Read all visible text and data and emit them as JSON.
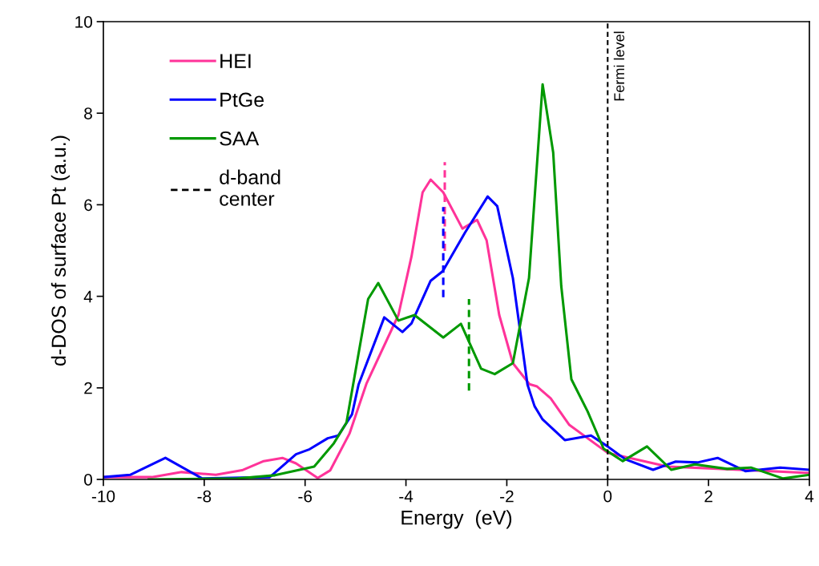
{
  "chart_data": {
    "type": "line",
    "xlabel": "Energy  (eV)",
    "ylabel": "d-DOS of surface Pt (a.u.)",
    "xlim": [
      -10,
      4
    ],
    "xticks": [
      -10,
      -8,
      -6,
      -4,
      -2,
      0,
      2,
      4
    ],
    "ylim": [
      0,
      10
    ],
    "yticks": [
      0,
      2,
      4,
      6,
      8,
      10
    ],
    "grid": false,
    "legend": "top left",
    "line_style": "solid",
    "marker": "none",
    "series": [
      {
        "name": "HEI",
        "color": "#ff3399",
        "x": [
          -10,
          -9.04,
          -8.45,
          -7.77,
          -7.25,
          -6.82,
          -6.45,
          -6.18,
          -5.75,
          -5.5,
          -5.12,
          -4.78,
          -4.15,
          -3.89,
          -3.67,
          -3.51,
          -3.26,
          -2.88,
          -2.59,
          -2.4,
          -2.15,
          -1.88,
          -1.55,
          -1.4,
          -1.13,
          -0.76,
          0,
          0.35,
          1.19,
          2.26,
          4
        ],
        "values": [
          0.05,
          0.05,
          0.16,
          0.1,
          0.2,
          0.4,
          0.47,
          0.35,
          0.03,
          0.2,
          1.0,
          2.1,
          3.59,
          4.87,
          6.27,
          6.55,
          6.27,
          5.48,
          5.67,
          5.22,
          3.59,
          2.54,
          2.08,
          2.03,
          1.77,
          1.19,
          0.58,
          0.49,
          0.28,
          0.23,
          0.14
        ]
      },
      {
        "name": "PtGe",
        "color": "#0000ff",
        "x": [
          -10,
          -9.47,
          -8.77,
          -8.04,
          -6.7,
          -6.18,
          -5.91,
          -5.55,
          -5.34,
          -5.07,
          -4.94,
          -4.43,
          -4.07,
          -3.89,
          -3.51,
          -3.27,
          -2.83,
          -2.38,
          -2.19,
          -1.88,
          -1.59,
          -1.45,
          -1.29,
          -0.85,
          -0.33,
          0,
          0.35,
          0.9,
          1.35,
          1.78,
          2.18,
          2.73,
          3.42,
          4
        ],
        "values": [
          0.05,
          0.1,
          0.47,
          0.02,
          0.05,
          0.55,
          0.66,
          0.9,
          0.96,
          1.42,
          2.07,
          3.54,
          3.22,
          3.41,
          4.34,
          4.55,
          5.39,
          6.18,
          5.97,
          4.4,
          2.07,
          1.6,
          1.31,
          0.86,
          0.96,
          0.72,
          0.44,
          0.21,
          0.39,
          0.37,
          0.47,
          0.18,
          0.26,
          0.21
        ]
      },
      {
        "name": "SAA",
        "color": "#009900",
        "x": [
          -9.1,
          -7.34,
          -6.6,
          -5.82,
          -5.43,
          -5.18,
          -4.75,
          -4.55,
          -4.15,
          -3.83,
          -3.26,
          -2.91,
          -2.51,
          -2.24,
          -1.88,
          -1.56,
          -1.29,
          -1.08,
          -0.92,
          -0.72,
          -0.4,
          -0.08,
          0.3,
          0.78,
          1.26,
          1.73,
          2.37,
          2.84,
          3.48,
          4
        ],
        "values": [
          0,
          0.02,
          0.09,
          0.28,
          0.79,
          1.24,
          3.94,
          4.29,
          3.47,
          3.59,
          3.1,
          3.4,
          2.42,
          2.3,
          2.54,
          4.4,
          8.63,
          7.14,
          4.22,
          2.19,
          1.49,
          0.67,
          0.4,
          0.72,
          0.21,
          0.33,
          0.23,
          0.26,
          0.02,
          0.1
        ]
      },
      {
        "color": "#ff3399",
        "line_style": "dashed",
        "x": [
          -3.23,
          -3.23
        ],
        "values": [
          4.99,
          6.93
        ]
      },
      {
        "color": "#0000ff",
        "line_style": "dashed",
        "x": [
          -3.26,
          -3.26
        ],
        "values": [
          3.98,
          5.95
        ]
      },
      {
        "color": "#009900",
        "line_style": "dashed",
        "x": [
          -2.75,
          -2.75
        ],
        "values": [
          1.94,
          3.94
        ]
      }
    ],
    "ref_lines": [
      {
        "axis": "x",
        "value": 0,
        "label": "Fermi level",
        "color": "#000000",
        "line_style": "dashed"
      }
    ],
    "annotations": [
      "d-band\ncenter"
    ]
  }
}
